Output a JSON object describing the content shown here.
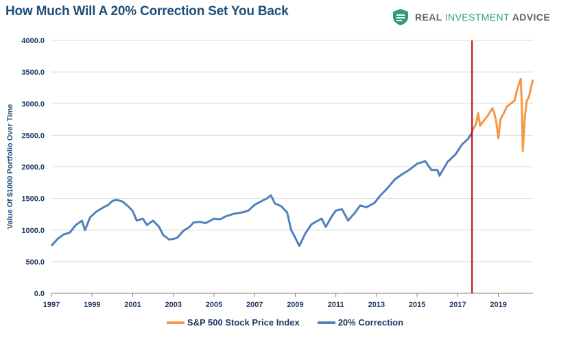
{
  "title": "How Much Will A 20% Correction Set You Back",
  "brand": {
    "name_bold": "REAL ",
    "name_accent": "INVESTMENT",
    "name_tail": " ADVICE",
    "logo_icon": "shield-icon",
    "logo_color": "#2f9c7f"
  },
  "chart_data": {
    "type": "line",
    "title": "How Much Will A 20% Correction Set You Back",
    "xlabel": "",
    "ylabel": "Value Of $1000 Portfolio Over Time",
    "xlim": [
      1997.0,
      2020.7
    ],
    "ylim": [
      0,
      4000
    ],
    "x_ticks": [
      "1997",
      "1999",
      "2001",
      "2003",
      "2005",
      "2007",
      "2009",
      "2011",
      "2013",
      "2015",
      "2017",
      "2019"
    ],
    "y_ticks": [
      "0.0",
      "500.0",
      "1000.0",
      "1500.0",
      "2000.0",
      "2500.0",
      "3000.0",
      "3500.0",
      "4000.0"
    ],
    "grid": "horizontal",
    "legend_position": "bottom",
    "vertical_marker": {
      "x": 2017.7,
      "color": "#c00000"
    },
    "series": [
      {
        "name": "S&P 500 Stock Price Index",
        "color": "#f79646",
        "x": [
          2017.7,
          2017.9,
          2018.0,
          2018.1,
          2018.3,
          2018.5,
          2018.7,
          2018.8,
          2018.9,
          2019.0,
          2019.1,
          2019.3,
          2019.4,
          2019.6,
          2019.8,
          2019.9,
          2020.0,
          2020.1,
          2020.15,
          2020.2,
          2020.3,
          2020.4,
          2020.5,
          2020.6,
          2020.7
        ],
        "values": [
          2560,
          2680,
          2850,
          2650,
          2740,
          2820,
          2930,
          2850,
          2700,
          2450,
          2750,
          2870,
          2950,
          3000,
          3050,
          3200,
          3300,
          3390,
          3000,
          2250,
          2800,
          3050,
          3100,
          3250,
          3380
        ]
      },
      {
        "name": "20% Correction",
        "color": "#4f81bd",
        "x": [
          1997.0,
          1997.3,
          1997.6,
          1997.9,
          1998.2,
          1998.5,
          1998.65,
          1998.9,
          1999.2,
          1999.5,
          1999.8,
          2000.0,
          2000.2,
          2000.5,
          2000.8,
          2001.0,
          2001.2,
          2001.5,
          2001.7,
          2002.0,
          2002.3,
          2002.5,
          2002.8,
          2003.0,
          2003.2,
          2003.5,
          2003.8,
          2004.0,
          2004.3,
          2004.6,
          2005.0,
          2005.3,
          2005.6,
          2006.0,
          2006.4,
          2006.7,
          2007.0,
          2007.3,
          2007.6,
          2007.8,
          2008.0,
          2008.3,
          2008.6,
          2008.8,
          2009.0,
          2009.2,
          2009.5,
          2009.8,
          2010.0,
          2010.3,
          2010.5,
          2010.8,
          2011.0,
          2011.3,
          2011.6,
          2011.9,
          2012.2,
          2012.5,
          2012.9,
          2013.2,
          2013.5,
          2013.9,
          2014.2,
          2014.6,
          2015.0,
          2015.4,
          2015.7,
          2016.0,
          2016.1,
          2016.5,
          2016.9,
          2017.2,
          2017.5,
          2017.7
        ],
        "values": [
          750,
          860,
          930,
          960,
          1080,
          1150,
          1000,
          1200,
          1290,
          1350,
          1400,
          1460,
          1480,
          1450,
          1370,
          1300,
          1150,
          1180,
          1080,
          1150,
          1050,
          920,
          850,
          860,
          880,
          990,
          1050,
          1120,
          1130,
          1110,
          1180,
          1170,
          1220,
          1260,
          1280,
          1310,
          1400,
          1450,
          1500,
          1550,
          1420,
          1380,
          1280,
          1000,
          880,
          750,
          950,
          1090,
          1130,
          1180,
          1050,
          1220,
          1310,
          1330,
          1150,
          1260,
          1390,
          1360,
          1430,
          1550,
          1650,
          1800,
          1870,
          1950,
          2050,
          2090,
          1950,
          1950,
          1860,
          2080,
          2200,
          2350,
          2440,
          2540
        ]
      }
    ]
  }
}
